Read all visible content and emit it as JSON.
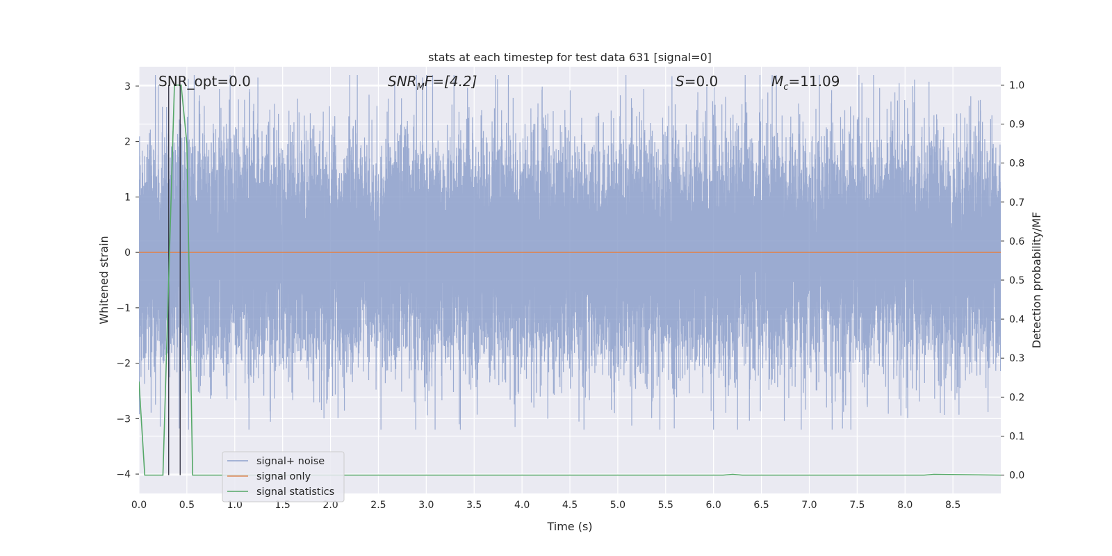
{
  "chart_data": {
    "type": "line",
    "title": "stats at each timestep for test data 631 [signal=0]",
    "xlabel": "Time (s)",
    "ylabel": "Whitened strain",
    "ylabel_right": "Detection probability/MF",
    "xlim": [
      0.0,
      9.0
    ],
    "ylim": [
      -4.35,
      3.35
    ],
    "ylim_right": [
      -0.047,
      1.047
    ],
    "xticks": [
      "0.0",
      "0.5",
      "1.0",
      "1.5",
      "2.0",
      "2.5",
      "3.0",
      "3.5",
      "4.0",
      "4.5",
      "5.0",
      "5.5",
      "6.0",
      "6.5",
      "7.0",
      "7.5",
      "8.0",
      "8.5"
    ],
    "yticks_left": [
      "3",
      "2",
      "1",
      "0",
      "−1",
      "−2",
      "−3",
      "−4"
    ],
    "yticks_right": [
      "1.0",
      "0.9",
      "0.8",
      "0.7",
      "0.6",
      "0.5",
      "0.4",
      "0.3",
      "0.2",
      "0.1",
      "0.0"
    ],
    "grid": true,
    "legend_position": "lower-left",
    "legend": [
      "signal+ noise",
      "signal only",
      "signal statistics"
    ],
    "annotations": {
      "snr_opt": "SNR_opt=0.0",
      "snr_mf_symbol": "SNR",
      "snr_mf_sub": "M",
      "snr_mf_rest": "F=[4.2]",
      "s_symbol": "S",
      "s_rest": "=0.0",
      "mc_symbol": "M",
      "mc_sub": "c",
      "mc_rest": "=11.09"
    },
    "vertical_markers": [
      0.31,
      0.43
    ],
    "series": [
      {
        "name": "signal+ noise",
        "axis": "left",
        "color": "#8da0cb",
        "description": "whitened noise, approx. standard normal, peaks near ±2.5 to 3",
        "sample_rate_hz": 2048,
        "duration_s": 9.0,
        "amplitude_sigma": 1.0
      },
      {
        "name": "signal only",
        "axis": "left",
        "color": "#dd8452",
        "x": [
          0.0,
          9.0
        ],
        "values": [
          0.0,
          0.0
        ]
      },
      {
        "name": "signal statistics",
        "axis": "right",
        "color": "#55a868",
        "x": [
          0.0,
          0.06,
          0.25,
          0.37,
          0.44,
          0.5,
          0.56,
          6.1,
          6.2,
          6.3,
          8.2,
          8.3,
          9.0
        ],
        "values": [
          0.24,
          0.0,
          0.0,
          1.0,
          1.0,
          0.85,
          0.0,
          0.0,
          0.002,
          0.0,
          0.0,
          0.002,
          0.0
        ]
      }
    ]
  }
}
